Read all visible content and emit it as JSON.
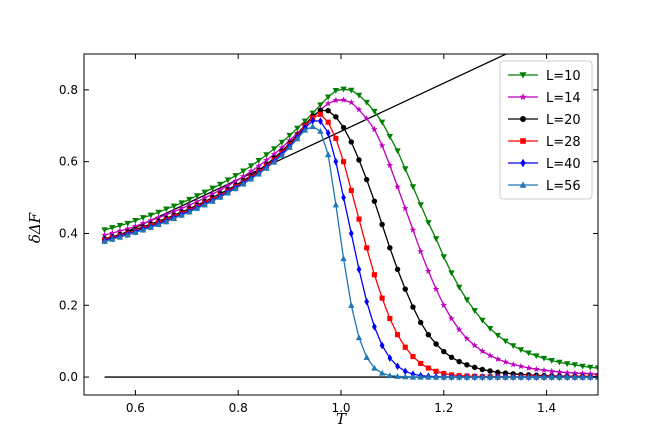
{
  "chart_data": {
    "type": "line",
    "xlabel": "T",
    "ylabel": "δΔF",
    "xlim": [
      0.5,
      1.5
    ],
    "ylim": [
      -0.05,
      0.9
    ],
    "x_ticks": [
      "0.6",
      "0.8",
      "1.0",
      "1.2",
      "1.4"
    ],
    "x_tick_values": [
      0.6,
      0.8,
      1.0,
      1.2,
      1.4
    ],
    "y_ticks": [
      "0.0",
      "0.2",
      "0.4",
      "0.6",
      "0.8"
    ],
    "y_tick_values": [
      0.0,
      0.2,
      0.4,
      0.6,
      0.8
    ],
    "grid": false,
    "legend_position": "top-right",
    "x": [
      0.54,
      0.555,
      0.57,
      0.585,
      0.6,
      0.615,
      0.63,
      0.645,
      0.66,
      0.675,
      0.69,
      0.705,
      0.72,
      0.735,
      0.75,
      0.765,
      0.78,
      0.795,
      0.81,
      0.825,
      0.84,
      0.855,
      0.87,
      0.885,
      0.9,
      0.915,
      0.93,
      0.945,
      0.96,
      0.975,
      0.99,
      1.005,
      1.02,
      1.035,
      1.05,
      1.065,
      1.08,
      1.095,
      1.11,
      1.125,
      1.14,
      1.155,
      1.17,
      1.185,
      1.2,
      1.215,
      1.23,
      1.245,
      1.26,
      1.275,
      1.29,
      1.305,
      1.32,
      1.335,
      1.35,
      1.365,
      1.38,
      1.395,
      1.41,
      1.425,
      1.44,
      1.455,
      1.47,
      1.485,
      1.5
    ],
    "series": [
      {
        "name": "L=10",
        "color": "#008000",
        "marker": "triangle-down",
        "values": [
          0.41,
          0.416,
          0.422,
          0.428,
          0.436,
          0.444,
          0.451,
          0.459,
          0.468,
          0.476,
          0.485,
          0.495,
          0.505,
          0.515,
          0.526,
          0.537,
          0.549,
          0.561,
          0.574,
          0.588,
          0.603,
          0.619,
          0.636,
          0.654,
          0.673,
          0.693,
          0.713,
          0.735,
          0.758,
          0.78,
          0.798,
          0.802,
          0.799,
          0.785,
          0.765,
          0.74,
          0.71,
          0.67,
          0.63,
          0.58,
          0.53,
          0.48,
          0.43,
          0.385,
          0.335,
          0.29,
          0.25,
          0.215,
          0.185,
          0.158,
          0.135,
          0.116,
          0.1,
          0.087,
          0.076,
          0.067,
          0.059,
          0.052,
          0.046,
          0.041,
          0.037,
          0.034,
          0.03,
          0.027,
          0.025
        ]
      },
      {
        "name": "L=14",
        "color": "#bf00bf",
        "marker": "star",
        "values": [
          0.395,
          0.401,
          0.407,
          0.413,
          0.42,
          0.428,
          0.436,
          0.444,
          0.452,
          0.461,
          0.47,
          0.479,
          0.489,
          0.499,
          0.51,
          0.521,
          0.533,
          0.546,
          0.559,
          0.573,
          0.588,
          0.604,
          0.621,
          0.639,
          0.659,
          0.679,
          0.701,
          0.723,
          0.745,
          0.762,
          0.771,
          0.772,
          0.765,
          0.745,
          0.72,
          0.69,
          0.645,
          0.59,
          0.53,
          0.47,
          0.41,
          0.35,
          0.295,
          0.245,
          0.2,
          0.163,
          0.132,
          0.107,
          0.088,
          0.072,
          0.06,
          0.05,
          0.042,
          0.035,
          0.03,
          0.025,
          0.022,
          0.019,
          0.016,
          0.014,
          0.012,
          0.011,
          0.01,
          0.009,
          0.008
        ]
      },
      {
        "name": "L=20",
        "color": "#000000",
        "marker": "circle",
        "values": [
          0.385,
          0.391,
          0.397,
          0.404,
          0.411,
          0.418,
          0.426,
          0.434,
          0.442,
          0.451,
          0.46,
          0.469,
          0.479,
          0.489,
          0.5,
          0.511,
          0.522,
          0.534,
          0.547,
          0.561,
          0.576,
          0.592,
          0.61,
          0.629,
          0.651,
          0.675,
          0.702,
          0.727,
          0.743,
          0.742,
          0.725,
          0.695,
          0.655,
          0.605,
          0.55,
          0.49,
          0.425,
          0.36,
          0.3,
          0.245,
          0.195,
          0.152,
          0.118,
          0.092,
          0.071,
          0.055,
          0.043,
          0.034,
          0.027,
          0.021,
          0.017,
          0.013,
          0.011,
          0.009,
          0.007,
          0.006,
          0.005,
          0.004,
          0.003,
          0.003,
          0.002,
          0.002,
          0.002,
          0.001,
          0.001
        ]
      },
      {
        "name": "L=28",
        "color": "#ff0000",
        "marker": "square",
        "values": [
          0.382,
          0.388,
          0.394,
          0.4,
          0.407,
          0.414,
          0.422,
          0.43,
          0.438,
          0.447,
          0.456,
          0.465,
          0.475,
          0.485,
          0.495,
          0.506,
          0.518,
          0.53,
          0.543,
          0.557,
          0.572,
          0.588,
          0.605,
          0.625,
          0.647,
          0.672,
          0.7,
          0.722,
          0.732,
          0.71,
          0.665,
          0.6,
          0.52,
          0.44,
          0.36,
          0.285,
          0.22,
          0.163,
          0.118,
          0.083,
          0.057,
          0.038,
          0.025,
          0.016,
          0.01,
          0.006,
          0.004,
          0.003,
          0.002,
          0.001,
          0.001,
          0.001,
          0.0,
          0.0,
          0.0,
          0.0,
          0.0,
          0.0,
          0.0,
          0.0,
          0.0,
          0.0,
          0.0,
          0.0,
          0.0
        ]
      },
      {
        "name": "L=40",
        "color": "#0000ff",
        "marker": "diamond",
        "values": [
          0.38,
          0.386,
          0.392,
          0.398,
          0.405,
          0.412,
          0.419,
          0.427,
          0.435,
          0.444,
          0.453,
          0.462,
          0.472,
          0.482,
          0.492,
          0.503,
          0.515,
          0.527,
          0.54,
          0.554,
          0.568,
          0.584,
          0.601,
          0.621,
          0.643,
          0.668,
          0.695,
          0.714,
          0.713,
          0.68,
          0.6,
          0.5,
          0.4,
          0.3,
          0.21,
          0.14,
          0.088,
          0.053,
          0.03,
          0.016,
          0.008,
          0.004,
          0.002,
          0.001,
          0.0,
          0.0,
          0.0,
          0.0,
          0.0,
          0.0,
          0.0,
          0.0,
          0.0,
          0.0,
          0.0,
          0.0,
          0.0,
          0.0,
          0.0,
          0.0,
          0.0,
          0.0,
          0.0,
          0.0,
          0.0
        ]
      },
      {
        "name": "L=56",
        "color": "#1f77b4",
        "marker": "triangle-up",
        "values": [
          0.378,
          0.384,
          0.39,
          0.396,
          0.403,
          0.41,
          0.417,
          0.425,
          0.433,
          0.442,
          0.451,
          0.46,
          0.47,
          0.48,
          0.49,
          0.501,
          0.513,
          0.525,
          0.538,
          0.552,
          0.566,
          0.582,
          0.599,
          0.618,
          0.64,
          0.664,
          0.688,
          0.698,
          0.685,
          0.62,
          0.48,
          0.33,
          0.2,
          0.11,
          0.055,
          0.025,
          0.011,
          0.004,
          0.002,
          0.001,
          0.0,
          0.0,
          0.0,
          0.0,
          0.0,
          0.0,
          0.0,
          0.0,
          0.0,
          0.0,
          0.0,
          0.0,
          0.0,
          0.0,
          0.0,
          0.0,
          0.0,
          0.0,
          0.0,
          0.0,
          0.0,
          0.0,
          0.0,
          0.0,
          0.0
        ]
      }
    ],
    "reference_lines": [
      {
        "color": "#000000",
        "x": [
          0.54,
          1.5
        ],
        "y": [
          0.376,
          1.02
        ]
      },
      {
        "color": "#000000",
        "x": [
          0.54,
          1.5
        ],
        "y": [
          0.0,
          0.0
        ]
      }
    ]
  }
}
